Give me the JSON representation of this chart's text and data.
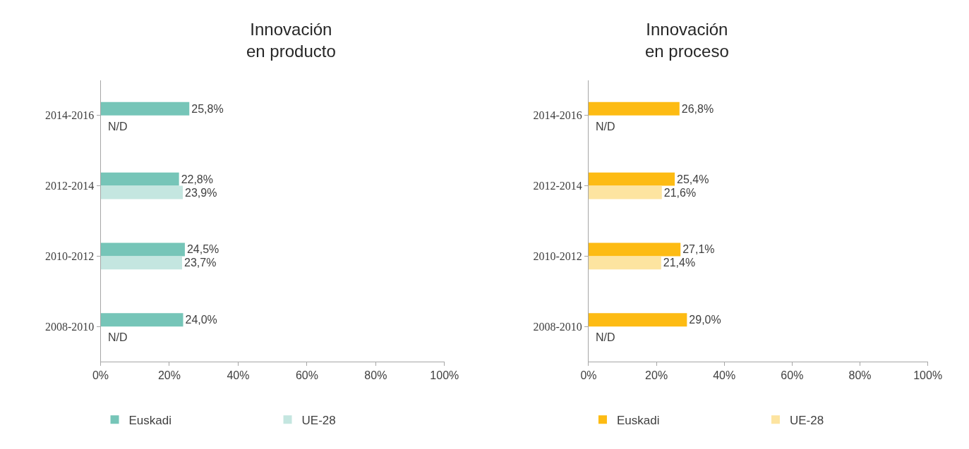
{
  "chart_data": [
    {
      "type": "bar",
      "title": "Innovación\nen producto",
      "orientation": "horizontal",
      "categories": [
        "2014-2016",
        "2012-2014",
        "2010-2012",
        "2008-2010"
      ],
      "series": [
        {
          "name": "Euskadi",
          "color": "#76c5b8",
          "values": [
            25.8,
            22.8,
            24.5,
            24.0
          ],
          "value_labels": [
            "25,8%",
            "22,8%",
            "24,5%",
            "24,0%"
          ]
        },
        {
          "name": "UE-28",
          "color": "#c4e6e0",
          "values": [
            null,
            23.9,
            23.7,
            null
          ],
          "value_labels": [
            "N/D",
            "23,9%",
            "23,7%",
            "N/D"
          ]
        }
      ],
      "xlim": [
        0,
        100
      ],
      "xticks": [
        {
          "value": 0,
          "label": "0%"
        },
        {
          "value": 20,
          "label": "20%"
        },
        {
          "value": 40,
          "label": "40%"
        },
        {
          "value": 60,
          "label": "60%"
        },
        {
          "value": 80,
          "label": "80%"
        },
        {
          "value": 100,
          "label": "100%"
        }
      ],
      "legend": "bottom"
    },
    {
      "type": "bar",
      "title": "Innovación\nen proceso",
      "orientation": "horizontal",
      "categories": [
        "2014-2016",
        "2012-2014",
        "2010-2012",
        "2008-2010"
      ],
      "series": [
        {
          "name": "Euskadi",
          "color": "#fdbb13",
          "values": [
            26.8,
            25.4,
            27.1,
            29.0
          ],
          "value_labels": [
            "26,8%",
            "25,4%",
            "27,1%",
            "29,0%"
          ]
        },
        {
          "name": "UE-28",
          "color": "#fde4a0",
          "values": [
            null,
            21.6,
            21.4,
            null
          ],
          "value_labels": [
            "N/D",
            "21,6%",
            "21,4%",
            "N/D"
          ]
        }
      ],
      "xlim": [
        0,
        100
      ],
      "xticks": [
        {
          "value": 0,
          "label": "0%"
        },
        {
          "value": 20,
          "label": "20%"
        },
        {
          "value": 40,
          "label": "40%"
        },
        {
          "value": 60,
          "label": "60%"
        },
        {
          "value": 80,
          "label": "80%"
        },
        {
          "value": 100,
          "label": "100%"
        }
      ],
      "legend": "bottom"
    }
  ]
}
